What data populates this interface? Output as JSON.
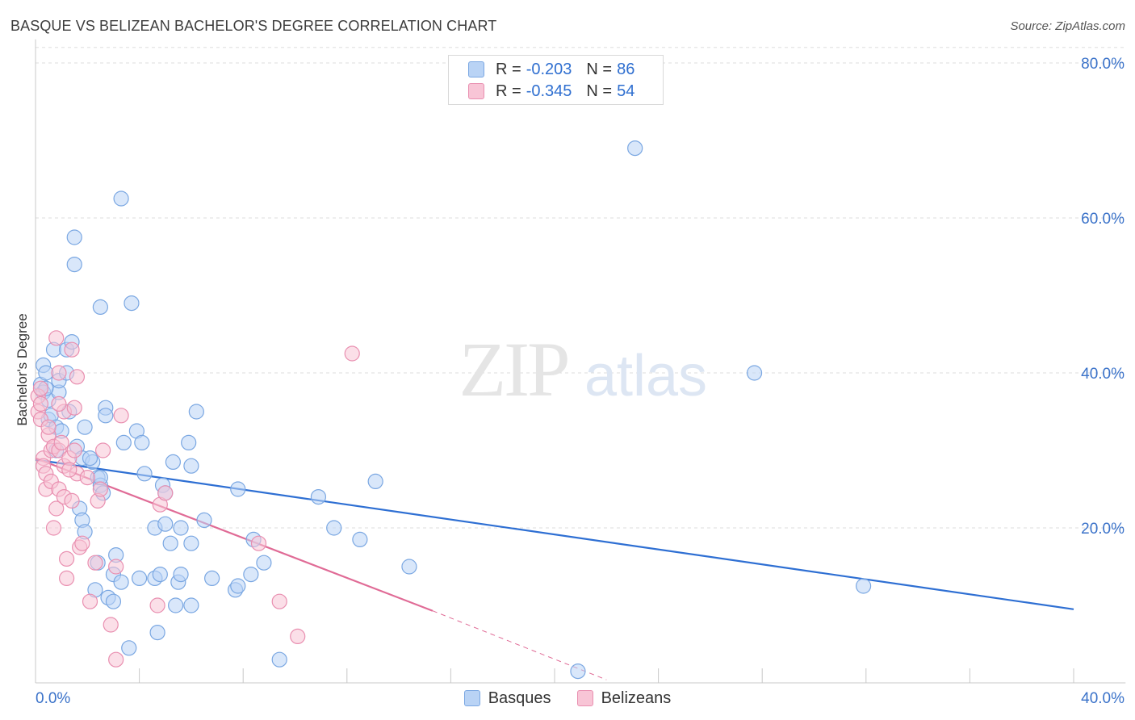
{
  "title": "BASQUE VS BELIZEAN BACHELOR'S DEGREE CORRELATION CHART",
  "source": "Source: ZipAtlas.com",
  "watermark": {
    "part1": "ZIP",
    "part2": "atlas"
  },
  "legend_top": [
    {
      "r_label": "R =",
      "r_value": "-0.203",
      "n_label": "N =",
      "n_value": "86"
    },
    {
      "r_label": "R =",
      "r_value": "-0.345",
      "n_label": "N =",
      "n_value": "54"
    }
  ],
  "legend_bottom": [
    {
      "label": "Basques"
    },
    {
      "label": "Belizeans"
    }
  ],
  "colors": {
    "basque_fill": "#b9d3f5",
    "basque_stroke": "#7aa7e2",
    "basque_line": "#2e6fd3",
    "belizean_fill": "#f8c5d6",
    "belizean_stroke": "#e98fb0",
    "belizean_line": "#e06b96",
    "axis_label": "#3a72c9",
    "grid": "#dedede"
  },
  "chart_data": {
    "type": "scatter",
    "title": "BASQUE VS BELIZEAN BACHELOR'S DEGREE CORRELATION CHART",
    "xlabel": "",
    "ylabel": "Bachelor's Degree",
    "xlim": [
      0,
      42
    ],
    "ylim": [
      0,
      82
    ],
    "x_tick_labels": [
      {
        "value": 0,
        "label": "0.0%"
      },
      {
        "value": 40,
        "label": "40.0%"
      }
    ],
    "y_tick_labels": [
      {
        "value": 20,
        "label": "20.0%"
      },
      {
        "value": 40,
        "label": "40.0%"
      },
      {
        "value": 60,
        "label": "60.0%"
      },
      {
        "value": 80,
        "label": "80.0%"
      }
    ],
    "x_minor_ticks": [
      4,
      8,
      12,
      16,
      20,
      24,
      28,
      32,
      36,
      40
    ],
    "series": [
      {
        "name": "Basques",
        "points": [
          [
            0.2,
            38.5
          ],
          [
            0.3,
            41
          ],
          [
            0.3,
            37.5
          ],
          [
            0.4,
            40
          ],
          [
            0.5,
            36.5
          ],
          [
            0.5,
            34
          ],
          [
            0.6,
            34.5
          ],
          [
            0.8,
            30
          ],
          [
            0.8,
            33
          ],
          [
            0.9,
            37.5
          ],
          [
            0.9,
            39
          ],
          [
            1,
            32.5
          ],
          [
            0.7,
            43
          ],
          [
            1.2,
            43
          ],
          [
            1.4,
            44
          ],
          [
            1.2,
            40
          ],
          [
            1.3,
            35
          ],
          [
            1.5,
            57.5
          ],
          [
            1.5,
            54
          ],
          [
            1.6,
            30.5
          ],
          [
            1.7,
            22.5
          ],
          [
            1.8,
            21
          ],
          [
            1.8,
            29
          ],
          [
            1.9,
            19.5
          ],
          [
            1.9,
            33
          ],
          [
            2.2,
            28.5
          ],
          [
            2.1,
            29
          ],
          [
            2.3,
            12
          ],
          [
            2.4,
            15.5
          ],
          [
            2.4,
            26.5
          ],
          [
            2.5,
            48.5
          ],
          [
            2.5,
            25.5
          ],
          [
            2.5,
            26.5
          ],
          [
            2.6,
            24.5
          ],
          [
            2.7,
            35.5
          ],
          [
            2.7,
            34.5
          ],
          [
            2.8,
            11
          ],
          [
            3,
            10.5
          ],
          [
            3,
            14
          ],
          [
            3.1,
            16.5
          ],
          [
            3.3,
            13
          ],
          [
            3.3,
            62.5
          ],
          [
            3.4,
            31
          ],
          [
            3.6,
            4.5
          ],
          [
            3.7,
            49
          ],
          [
            3.9,
            32.5
          ],
          [
            4,
            13.5
          ],
          [
            4.1,
            31
          ],
          [
            4.2,
            27
          ],
          [
            4.6,
            20
          ],
          [
            4.7,
            6.5
          ],
          [
            4.6,
            13.5
          ],
          [
            4.8,
            14
          ],
          [
            4.9,
            25.5
          ],
          [
            5,
            24.5
          ],
          [
            5,
            20.5
          ],
          [
            5.2,
            18
          ],
          [
            5.3,
            28.5
          ],
          [
            5.4,
            10
          ],
          [
            5.5,
            13
          ],
          [
            5.6,
            14
          ],
          [
            5.6,
            20
          ],
          [
            5.9,
            31
          ],
          [
            6,
            18
          ],
          [
            6,
            28
          ],
          [
            6,
            10
          ],
          [
            6.2,
            35
          ],
          [
            6.5,
            21
          ],
          [
            6.8,
            13.5
          ],
          [
            7.7,
            12
          ],
          [
            7.8,
            12.5
          ],
          [
            7.8,
            25
          ],
          [
            8.3,
            14
          ],
          [
            8.4,
            18.5
          ],
          [
            8.8,
            15.5
          ],
          [
            9.4,
            3
          ],
          [
            10.9,
            24
          ],
          [
            11.5,
            20
          ],
          [
            12.5,
            18.5
          ],
          [
            13.1,
            26
          ],
          [
            14.4,
            15
          ],
          [
            20.9,
            1.5
          ],
          [
            23.1,
            69
          ],
          [
            27.7,
            40
          ],
          [
            31.9,
            12.5
          ],
          [
            0.4,
            38
          ]
        ]
      },
      {
        "name": "Belizeans",
        "points": [
          [
            0.1,
            37
          ],
          [
            0.1,
            35
          ],
          [
            0.2,
            34
          ],
          [
            0.2,
            38
          ],
          [
            0.3,
            29
          ],
          [
            0.3,
            28
          ],
          [
            0.4,
            27
          ],
          [
            0.4,
            25
          ],
          [
            0.5,
            32
          ],
          [
            0.6,
            30
          ],
          [
            0.6,
            26
          ],
          [
            0.7,
            30.5
          ],
          [
            0.7,
            20
          ],
          [
            0.8,
            44.5
          ],
          [
            0.8,
            22.5
          ],
          [
            0.9,
            40
          ],
          [
            0.9,
            30
          ],
          [
            0.9,
            25
          ],
          [
            1,
            31
          ],
          [
            1.1,
            24
          ],
          [
            1.1,
            28
          ],
          [
            1.1,
            35
          ],
          [
            1.2,
            16
          ],
          [
            1.2,
            13.5
          ],
          [
            1.3,
            29
          ],
          [
            1.4,
            43
          ],
          [
            1.4,
            23.5
          ],
          [
            1.5,
            30
          ],
          [
            1.5,
            35.5
          ],
          [
            1.6,
            39.5
          ],
          [
            1.6,
            27
          ],
          [
            1.7,
            17.5
          ],
          [
            1.8,
            18
          ],
          [
            2,
            26.5
          ],
          [
            2.1,
            10.5
          ],
          [
            2.3,
            15.5
          ],
          [
            2.4,
            23.5
          ],
          [
            2.6,
            30
          ],
          [
            2.9,
            7.5
          ],
          [
            3.1,
            15
          ],
          [
            3.1,
            3
          ],
          [
            3.3,
            34.5
          ],
          [
            4.7,
            10
          ],
          [
            4.8,
            23
          ],
          [
            5,
            24.5
          ],
          [
            8.6,
            18
          ],
          [
            9.4,
            10.5
          ],
          [
            10.1,
            6
          ],
          [
            12.2,
            42.5
          ],
          [
            0.2,
            36
          ],
          [
            0.5,
            33
          ],
          [
            1.3,
            27.5
          ],
          [
            2.5,
            25
          ],
          [
            0.9,
            36
          ]
        ]
      }
    ],
    "trendlines": [
      {
        "series": "Basques",
        "x": [
          0,
          40
        ],
        "y": [
          28.8,
          9.5
        ],
        "style": "solid"
      },
      {
        "series": "Belizeans",
        "x": [
          0,
          15.3
        ],
        "y": [
          29,
          9.3
        ],
        "style": "solid"
      },
      {
        "series": "Belizeans",
        "x": [
          15.3,
          22
        ],
        "y": [
          9.3,
          0.4
        ],
        "style": "dashed"
      }
    ]
  }
}
